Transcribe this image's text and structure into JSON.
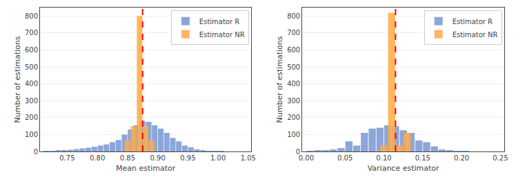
{
  "chart_data": [
    {
      "type": "histogram",
      "xlabel": "Mean estimator",
      "ylabel": "Number of estimations",
      "xlim": [
        0.705,
        1.055
      ],
      "ylim": [
        0,
        850
      ],
      "xticks": [
        0.75,
        {
          "value": 0.8,
          "label": "0.80"
        },
        0.85,
        {
          "value": 0.9,
          "label": "0.90"
        },
        0.95,
        {
          "value": 1.0,
          "label": "1.00"
        },
        1.05
      ],
      "yticks": [
        0,
        100,
        200,
        300,
        400,
        500,
        600,
        700,
        800
      ],
      "grid": "y",
      "legend": "upper right",
      "series": [
        {
          "name": "Estimator R",
          "color": "#6688cc",
          "bins": [
            0.71,
            0.72,
            0.73,
            0.74,
            0.75,
            0.76,
            0.77,
            0.78,
            0.79,
            0.8,
            0.81,
            0.82,
            0.83,
            0.84,
            0.85,
            0.86,
            0.87,
            0.88,
            0.89,
            0.9,
            0.91,
            0.92,
            0.93,
            0.94,
            0.95,
            0.96,
            0.97,
            0.98,
            0.99,
            1.0,
            1.01
          ],
          "values": [
            2,
            3,
            5,
            7,
            10,
            14,
            18,
            22,
            28,
            35,
            42,
            55,
            68,
            100,
            130,
            155,
            180,
            175,
            155,
            135,
            110,
            80,
            60,
            35,
            25,
            13,
            8,
            4,
            2,
            1
          ]
        },
        {
          "name": "Estimator NR",
          "color": "#ffaa44",
          "bins": [
            0.845,
            0.855,
            0.865,
            0.875,
            0.885,
            0.895
          ],
          "values": [
            65,
            150,
            800,
            150,
            65
          ]
        }
      ],
      "vline": {
        "x": 0.875,
        "color": "#ff0000",
        "line_style": "dashed"
      }
    },
    {
      "type": "histogram",
      "xlabel": "Variance estimator",
      "ylabel": "Number of estimations",
      "xlim": [
        -0.005,
        0.255
      ],
      "ylim": [
        0,
        850
      ],
      "xticks": [
        {
          "value": 0.0,
          "label": "0.00"
        },
        0.05,
        {
          "value": 0.1,
          "label": "0.10"
        },
        0.15,
        {
          "value": 0.2,
          "label": "0.20"
        },
        0.25
      ],
      "yticks": [
        0,
        100,
        200,
        300,
        400,
        500,
        600,
        700,
        800
      ],
      "grid": "y",
      "legend": "upper right",
      "series": [
        {
          "name": "Estimator R",
          "color": "#6688cc",
          "bins": [
            0.0,
            0.01,
            0.02,
            0.03,
            0.04,
            0.05,
            0.06,
            0.07,
            0.08,
            0.09,
            0.1,
            0.11,
            0.12,
            0.13,
            0.14,
            0.15,
            0.16,
            0.17,
            0.18,
            0.19,
            0.2,
            0.21
          ],
          "values": [
            2,
            5,
            8,
            12,
            20,
            60,
            35,
            110,
            135,
            140,
            155,
            150,
            125,
            110,
            65,
            55,
            30,
            12,
            6,
            2,
            1
          ]
        },
        {
          "name": "Estimator NR",
          "color": "#ffaa44",
          "bins": [
            0.095,
            0.105,
            0.115,
            0.125,
            0.135,
            0.145
          ],
          "values": [
            35,
            820,
            35,
            110,
            0
          ]
        }
      ],
      "vline": {
        "x": 0.115,
        "color": "#ff0000",
        "line_style": "dashed"
      }
    }
  ]
}
